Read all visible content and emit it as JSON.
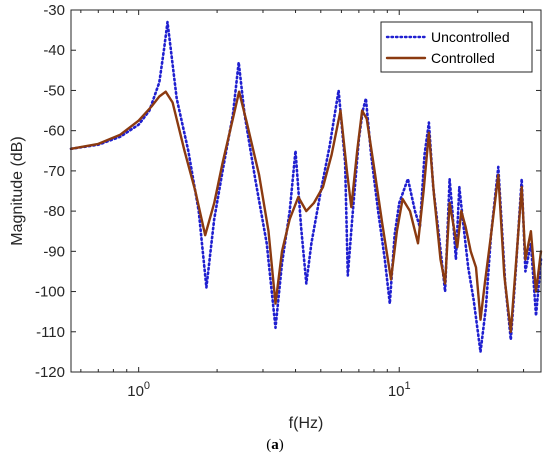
{
  "caption": {
    "open": "(",
    "letter": "a",
    "close": ")"
  },
  "chart_data": {
    "type": "line",
    "xlabel": "f(Hz)",
    "ylabel": "Magnitude (dB)",
    "xscale": "log",
    "xlim": [
      0.55,
      35
    ],
    "ylim": [
      -120,
      -30
    ],
    "yticks": [
      -30,
      -40,
      -50,
      -60,
      -70,
      -80,
      -90,
      -100,
      -110,
      -120
    ],
    "xticks": [
      {
        "value": 1,
        "base": "10",
        "exp": "0"
      },
      {
        "value": 10,
        "base": "10",
        "exp": "1"
      }
    ],
    "grid": false,
    "legend": "top-right",
    "series": [
      {
        "name": "Uncontrolled",
        "color": "#1f1fd0",
        "style": "dotted",
        "points": [
          [
            0.55,
            -64.5
          ],
          [
            0.7,
            -63.5
          ],
          [
            0.85,
            -61.5
          ],
          [
            1.0,
            -58.5
          ],
          [
            1.1,
            -55
          ],
          [
            1.2,
            -48
          ],
          [
            1.25,
            -40
          ],
          [
            1.29,
            -33
          ],
          [
            1.33,
            -40
          ],
          [
            1.4,
            -52
          ],
          [
            1.55,
            -65
          ],
          [
            1.7,
            -80
          ],
          [
            1.82,
            -99
          ],
          [
            1.95,
            -82
          ],
          [
            2.1,
            -70
          ],
          [
            2.3,
            -56
          ],
          [
            2.42,
            -43
          ],
          [
            2.55,
            -56
          ],
          [
            2.8,
            -72
          ],
          [
            3.1,
            -88
          ],
          [
            3.35,
            -109
          ],
          [
            3.55,
            -93
          ],
          [
            3.8,
            -80
          ],
          [
            4.0,
            -65
          ],
          [
            4.2,
            -84
          ],
          [
            4.4,
            -98
          ],
          [
            4.6,
            -88
          ],
          [
            5.0,
            -75
          ],
          [
            5.4,
            -64
          ],
          [
            5.85,
            -50
          ],
          [
            6.2,
            -68
          ],
          [
            6.35,
            -96
          ],
          [
            6.6,
            -82
          ],
          [
            7.0,
            -62
          ],
          [
            7.25,
            -55
          ],
          [
            7.45,
            -52
          ],
          [
            7.8,
            -66
          ],
          [
            8.3,
            -80
          ],
          [
            8.8,
            -92
          ],
          [
            9.2,
            -103
          ],
          [
            9.6,
            -86
          ],
          [
            10.0,
            -78
          ],
          [
            10.8,
            -72
          ],
          [
            11.5,
            -80
          ],
          [
            12.0,
            -84
          ],
          [
            12.5,
            -66
          ],
          [
            13.0,
            -58
          ],
          [
            13.5,
            -74
          ],
          [
            14.2,
            -86
          ],
          [
            15.0,
            -100
          ],
          [
            15.6,
            -72
          ],
          [
            16.0,
            -80
          ],
          [
            16.5,
            -92
          ],
          [
            17.0,
            -74
          ],
          [
            17.6,
            -83
          ],
          [
            18.4,
            -94
          ],
          [
            19.3,
            -102
          ],
          [
            20.5,
            -115
          ],
          [
            21.5,
            -104
          ],
          [
            22.5,
            -86
          ],
          [
            24.0,
            -69
          ],
          [
            25.5,
            -98
          ],
          [
            26.8,
            -112
          ],
          [
            28.0,
            -95
          ],
          [
            29.5,
            -72
          ],
          [
            30.5,
            -95
          ],
          [
            32.0,
            -88
          ],
          [
            33.5,
            -106
          ],
          [
            35.0,
            -92
          ]
        ]
      },
      {
        "name": "Controlled",
        "color": "#8b3a10",
        "style": "solid",
        "points": [
          [
            0.55,
            -64.5
          ],
          [
            0.7,
            -63.3
          ],
          [
            0.85,
            -61
          ],
          [
            1.0,
            -57.5
          ],
          [
            1.12,
            -54
          ],
          [
            1.2,
            -51.5
          ],
          [
            1.27,
            -50.3
          ],
          [
            1.35,
            -53
          ],
          [
            1.5,
            -65
          ],
          [
            1.65,
            -75
          ],
          [
            1.8,
            -86
          ],
          [
            1.95,
            -78
          ],
          [
            2.1,
            -68
          ],
          [
            2.3,
            -57
          ],
          [
            2.43,
            -50.3
          ],
          [
            2.6,
            -58
          ],
          [
            2.9,
            -71
          ],
          [
            3.15,
            -85
          ],
          [
            3.35,
            -103
          ],
          [
            3.55,
            -90
          ],
          [
            3.8,
            -82
          ],
          [
            4.1,
            -76.5
          ],
          [
            4.4,
            -80
          ],
          [
            4.7,
            -78
          ],
          [
            5.1,
            -74
          ],
          [
            5.5,
            -66
          ],
          [
            5.95,
            -55
          ],
          [
            6.3,
            -70
          ],
          [
            6.55,
            -79
          ],
          [
            6.9,
            -65
          ],
          [
            7.2,
            -55
          ],
          [
            7.5,
            -57
          ],
          [
            8.0,
            -69
          ],
          [
            8.6,
            -83
          ],
          [
            9.3,
            -97
          ],
          [
            9.8,
            -85
          ],
          [
            10.3,
            -77
          ],
          [
            11.0,
            -80
          ],
          [
            11.8,
            -88
          ],
          [
            12.4,
            -75
          ],
          [
            13.0,
            -60.5
          ],
          [
            13.6,
            -76
          ],
          [
            14.4,
            -92
          ],
          [
            15.0,
            -98
          ],
          [
            15.6,
            -78
          ],
          [
            16.2,
            -84
          ],
          [
            16.7,
            -89
          ],
          [
            17.3,
            -80
          ],
          [
            18.0,
            -84
          ],
          [
            18.8,
            -90
          ],
          [
            19.7,
            -94
          ],
          [
            20.5,
            -107
          ],
          [
            21.3,
            -98
          ],
          [
            22.5,
            -86
          ],
          [
            24.0,
            -71
          ],
          [
            25.3,
            -96
          ],
          [
            26.8,
            -110
          ],
          [
            28.0,
            -94
          ],
          [
            29.5,
            -74
          ],
          [
            30.5,
            -92
          ],
          [
            32.0,
            -85
          ],
          [
            33.5,
            -100
          ],
          [
            35.0,
            -90
          ]
        ]
      }
    ]
  }
}
